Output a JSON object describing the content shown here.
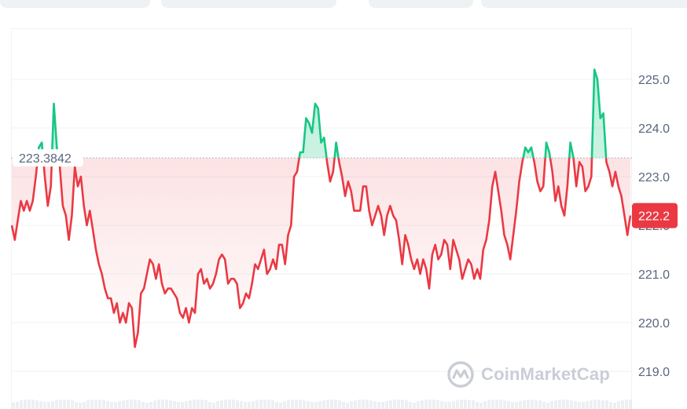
{
  "tabs": [
    {
      "name": "tab-group-1"
    },
    {
      "name": "tab-group-2"
    },
    {
      "name": "tab-group-3"
    },
    {
      "name": "tab-group-4"
    }
  ],
  "colors": {
    "up": "#16c784",
    "down": "#ea3943",
    "grid": "#eff2f5",
    "axis_text": "#58667e",
    "baseline": "#9aa4b2"
  },
  "watermark": {
    "text": "CoinMarketCap",
    "icon": "coinmarketcap-logo-icon"
  },
  "chart_data": {
    "type": "line",
    "baseline": 223.3842,
    "baseline_label": "223.3842",
    "current_value": 222.2,
    "current_label": "222.2",
    "ylim": [
      218.6,
      226.3
    ],
    "yticks": [
      219.0,
      220.0,
      221.0,
      222.0,
      223.0,
      224.0,
      225.0
    ],
    "ytick_labels": [
      "219.0",
      "220.0",
      "221.0",
      "222.0",
      "223.0",
      "224.0",
      "225.0"
    ],
    "grid": true,
    "series": [
      {
        "values": [
          222.0,
          221.7,
          222.1,
          222.5,
          222.3,
          222.5,
          222.3,
          222.5,
          223.0,
          223.6,
          223.7,
          223.0,
          222.4,
          222.8,
          224.5,
          223.6,
          223.2,
          222.4,
          222.2,
          221.7,
          222.2,
          223.2,
          222.8,
          223.0,
          222.4,
          222.0,
          222.3,
          221.9,
          221.5,
          221.2,
          221.0,
          220.7,
          220.5,
          220.5,
          220.2,
          220.4,
          220.0,
          220.2,
          220.0,
          220.4,
          220.3,
          219.5,
          219.8,
          220.6,
          220.7,
          221.0,
          221.3,
          221.2,
          220.9,
          221.2,
          220.8,
          220.6,
          220.7,
          220.7,
          220.6,
          220.5,
          220.2,
          220.1,
          220.3,
          220.0,
          220.3,
          220.2,
          221.0,
          221.1,
          220.8,
          220.9,
          220.7,
          220.8,
          221.0,
          221.3,
          221.4,
          221.3,
          220.8,
          220.9,
          220.9,
          220.8,
          220.3,
          220.4,
          220.6,
          220.5,
          220.8,
          221.2,
          221.1,
          221.3,
          221.5,
          221.0,
          221.1,
          221.3,
          221.1,
          221.6,
          221.6,
          221.2,
          221.8,
          222.0,
          223.0,
          223.1,
          223.5,
          223.5,
          224.2,
          224.1,
          223.9,
          224.5,
          224.4,
          223.7,
          223.8,
          223.3,
          222.9,
          223.1,
          223.7,
          223.3,
          223.0,
          222.6,
          222.9,
          222.7,
          222.3,
          222.3,
          222.3,
          222.8,
          222.8,
          222.3,
          222.0,
          222.2,
          222.4,
          222.2,
          221.8,
          222.2,
          222.4,
          222.2,
          222.1,
          221.7,
          221.2,
          221.8,
          221.6,
          221.3,
          221.1,
          221.3,
          221.0,
          221.3,
          221.1,
          220.7,
          221.4,
          221.6,
          221.3,
          221.4,
          221.7,
          221.6,
          221.1,
          221.7,
          221.5,
          221.3,
          220.9,
          221.1,
          221.3,
          221.2,
          220.9,
          221.1,
          220.9,
          221.5,
          221.7,
          222.1,
          222.8,
          223.1,
          222.7,
          222.3,
          221.8,
          221.6,
          221.3,
          221.8,
          222.3,
          222.9,
          223.3,
          223.6,
          223.5,
          223.6,
          223.3,
          222.9,
          222.7,
          222.8,
          223.7,
          223.5,
          223.1,
          222.5,
          222.8,
          222.4,
          222.2,
          222.8,
          223.7,
          223.4,
          222.8,
          223.3,
          223.2,
          222.7,
          222.8,
          223.0,
          225.2,
          225.0,
          224.2,
          224.3,
          223.3,
          223.1,
          222.8,
          223.1,
          222.8,
          222.6,
          222.2,
          221.8,
          222.2
        ]
      }
    ]
  }
}
